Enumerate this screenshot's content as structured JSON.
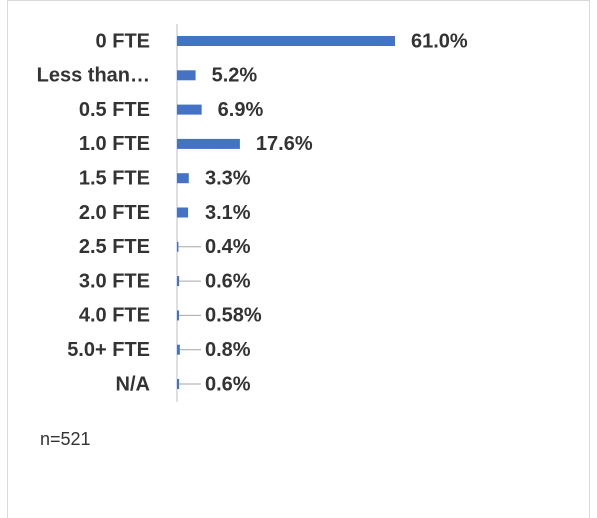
{
  "chart_data": {
    "type": "bar",
    "orientation": "horizontal",
    "categories": [
      "0 FTE",
      "Less than…",
      "0.5 FTE",
      "1.0 FTE",
      "1.5 FTE",
      "2.0 FTE",
      "2.5 FTE",
      "3.0 FTE",
      "4.0 FTE",
      "5.0+ FTE",
      "N/A"
    ],
    "values": [
      61.0,
      5.2,
      6.9,
      17.6,
      3.3,
      3.1,
      0.4,
      0.6,
      0.58,
      0.8,
      0.6
    ],
    "value_labels": [
      "61.0%",
      "5.2%",
      "6.9%",
      "17.6%",
      "3.3%",
      "3.1%",
      "0.4%",
      "0.6%",
      "0.58%",
      "0.8%",
      "0.6%"
    ],
    "color": "#4472c4",
    "annotation": "n=521"
  }
}
